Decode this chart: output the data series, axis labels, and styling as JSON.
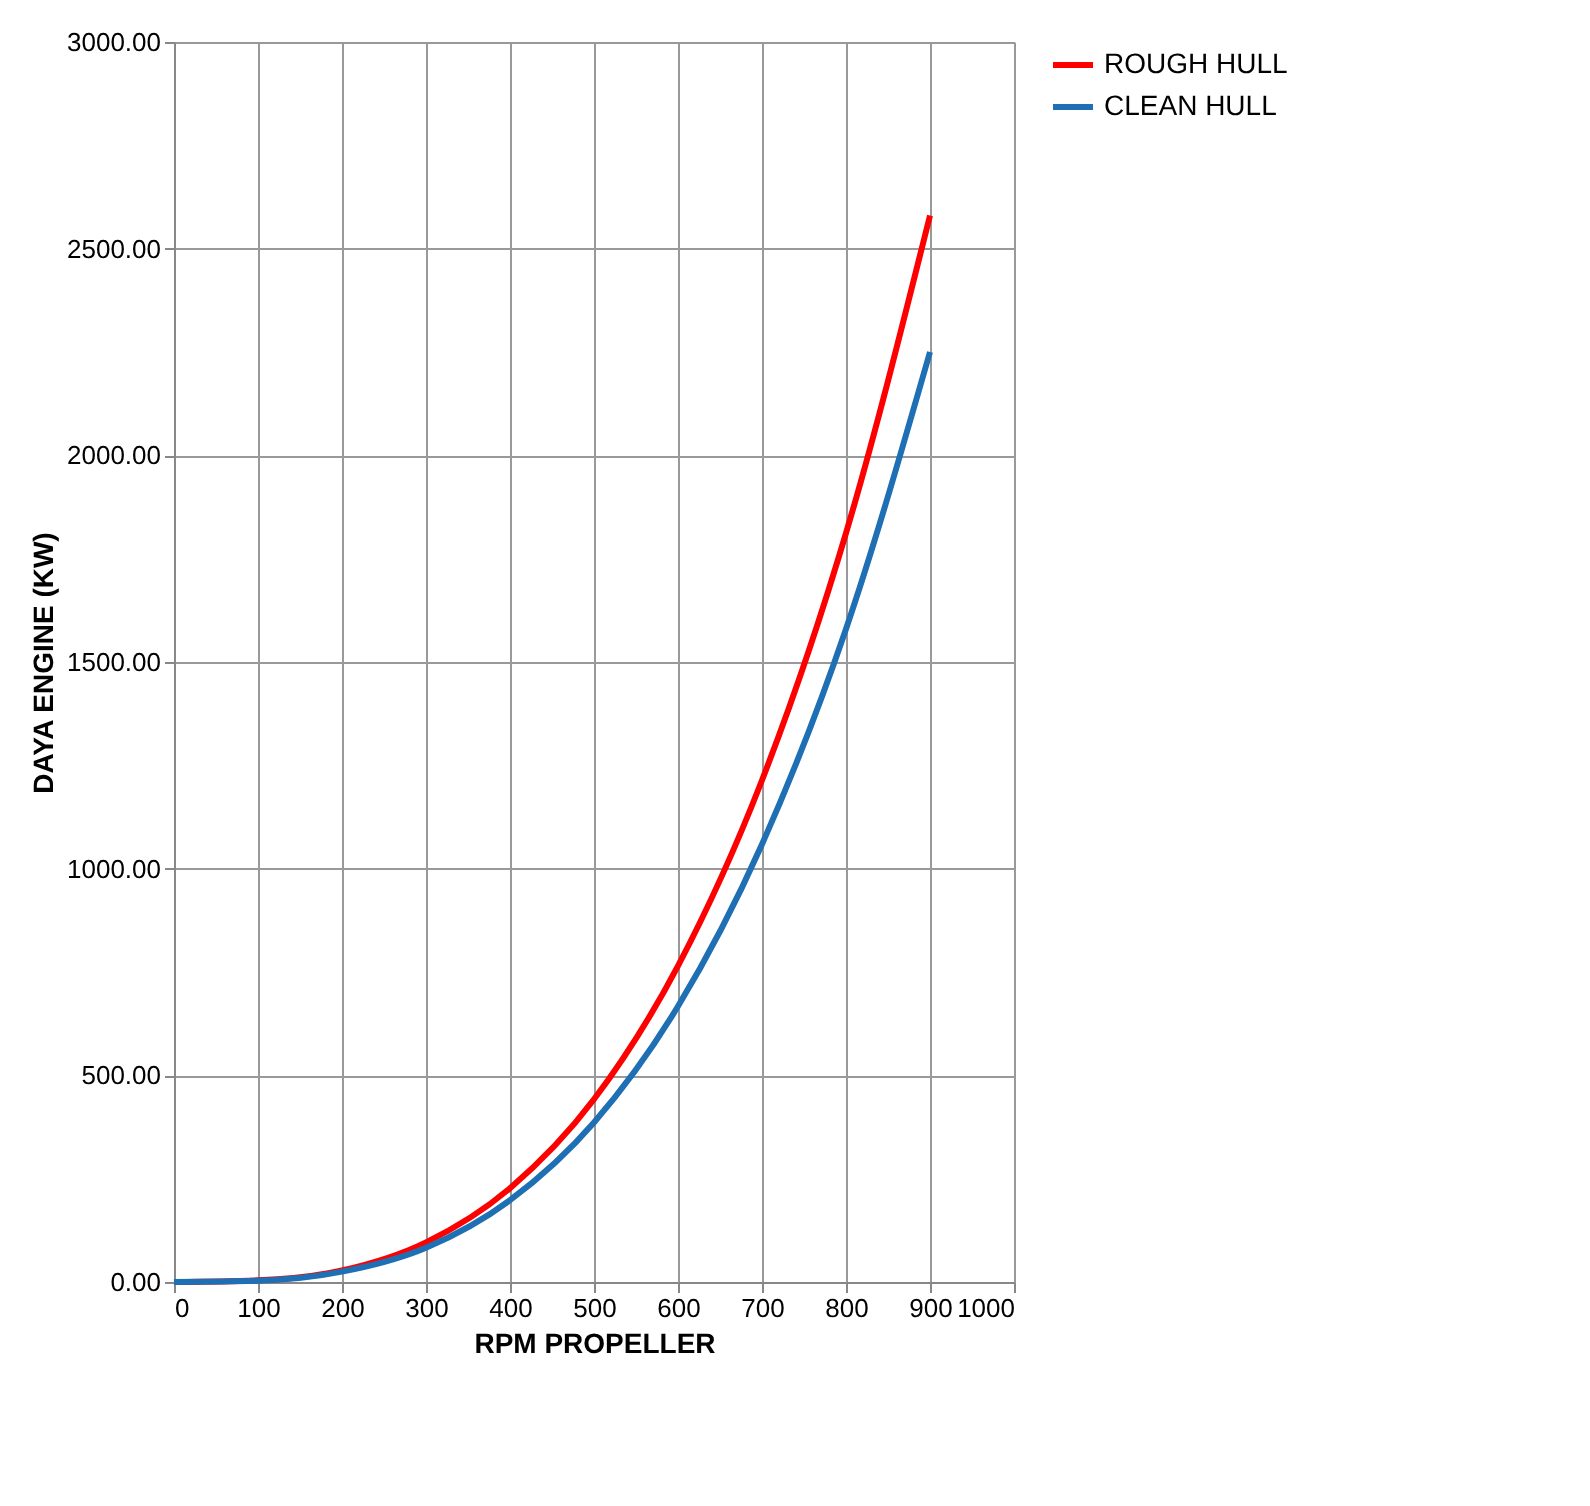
{
  "chart_data": {
    "type": "line",
    "xlabel": "RPM PROPELLER",
    "ylabel": "DAYA ENGINE (KW)",
    "x": [
      0,
      100,
      200,
      300,
      400,
      500,
      600,
      700,
      800,
      900
    ],
    "series": [
      {
        "name": "ROUGH HULL",
        "color": "#ff0000",
        "values": [
          0,
          4,
          28,
          96,
          227,
          442,
          765,
          1214,
          1812,
          2580
        ]
      },
      {
        "name": "CLEAN HULL",
        "color": "#1f6fb4",
        "values": [
          0,
          3,
          25,
          83,
          198,
          386,
          667,
          1059,
          1580,
          2250
        ]
      }
    ],
    "xlim": [
      0,
      1000
    ],
    "xticks": [
      0,
      100,
      200,
      300,
      400,
      500,
      600,
      700,
      800,
      900,
      1000
    ],
    "ylim": [
      0,
      3000
    ],
    "yticks": [
      {
        "value": 0,
        "label": "0.00"
      },
      {
        "value": 500,
        "label": "500.00"
      },
      {
        "value": 1000,
        "label": "1000.00"
      },
      {
        "value": 1500,
        "label": "1500.00"
      },
      {
        "value": 2000,
        "label": "2000.00"
      },
      {
        "value": 2500,
        "label": "2500.00"
      },
      {
        "value": 3000,
        "label": "3000.00"
      }
    ],
    "grid": true,
    "legend": "right",
    "marker": "none",
    "line_style": "solid"
  }
}
